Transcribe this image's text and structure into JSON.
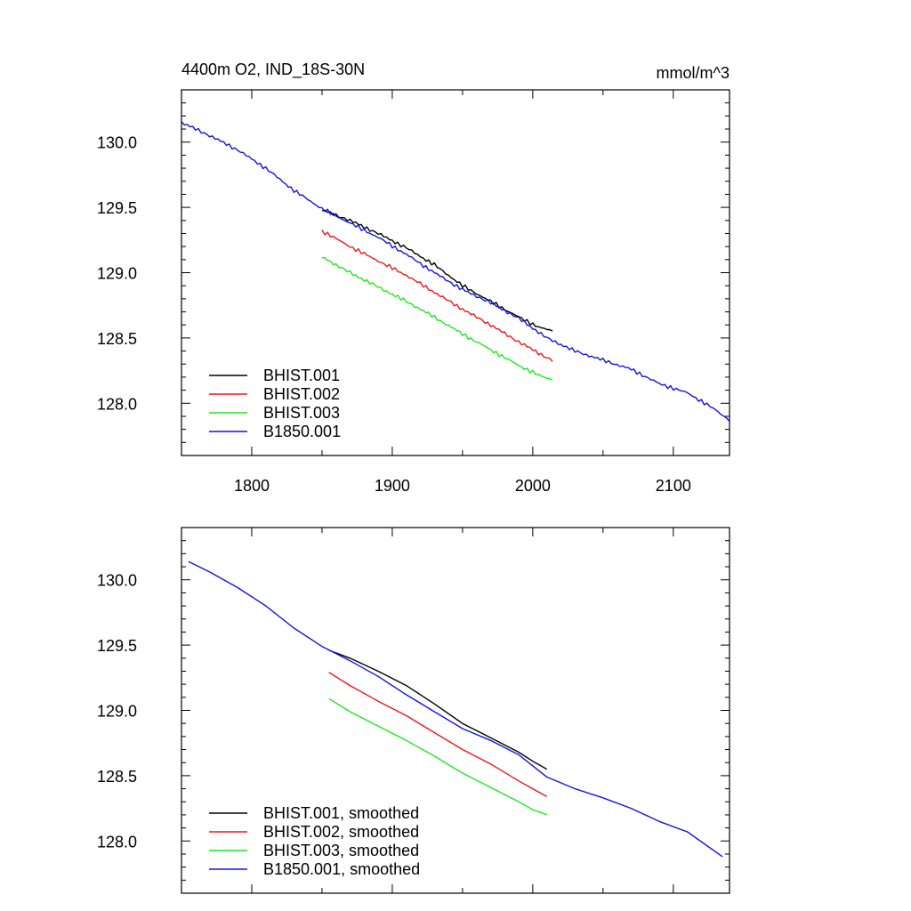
{
  "colors": {
    "BHIST.001": "#000000",
    "BHIST.002": "#e8171b",
    "BHIST.003": "#1fe81f",
    "B1850.001": "#1414d9"
  },
  "chart_data": [
    {
      "type": "line",
      "title": "4400m O2, IND_18S-30N",
      "units": "mmol/m^3",
      "xlabel": "",
      "ylabel": "",
      "xlim": [
        1750,
        2140
      ],
      "ylim": [
        127.6,
        130.4
      ],
      "xticks": [
        1800,
        1900,
        2000,
        2100
      ],
      "xticklabels": [
        "1800",
        "1900",
        "2000",
        "2100"
      ],
      "yticks": [
        128.0,
        128.5,
        129.0,
        129.5,
        130.0
      ],
      "yticklabels": [
        "128.0",
        "128.5",
        "129.0",
        "129.5",
        "130.0"
      ],
      "grid": false,
      "legend": "bottom-left",
      "noisy": true,
      "series": [
        {
          "name": "BHIST.001",
          "x": [
            1850,
            1870,
            1890,
            1910,
            1930,
            1950,
            1970,
            1990,
            2005,
            2015
          ],
          "y": [
            129.48,
            129.4,
            129.3,
            129.19,
            129.06,
            128.9,
            128.78,
            128.66,
            128.58,
            128.55
          ]
        },
        {
          "name": "BHIST.002",
          "x": [
            1850,
            1870,
            1890,
            1910,
            1930,
            1950,
            1970,
            1990,
            2005,
            2015
          ],
          "y": [
            129.32,
            129.2,
            129.09,
            128.98,
            128.85,
            128.72,
            128.6,
            128.47,
            128.38,
            128.32
          ]
        },
        {
          "name": "BHIST.003",
          "x": [
            1850,
            1870,
            1890,
            1910,
            1930,
            1950,
            1970,
            1990,
            2005,
            2015
          ],
          "y": [
            129.12,
            129.0,
            128.89,
            128.78,
            128.66,
            128.53,
            128.41,
            128.29,
            128.21,
            128.18
          ]
        },
        {
          "name": "B1850.001",
          "x": [
            1750,
            1770,
            1790,
            1810,
            1830,
            1850,
            1870,
            1890,
            1910,
            1930,
            1950,
            1970,
            1990,
            2010,
            2030,
            2050,
            2070,
            2090,
            2110,
            2130,
            2140
          ],
          "y": [
            130.15,
            130.05,
            129.94,
            129.8,
            129.63,
            129.49,
            129.38,
            129.27,
            129.14,
            129.0,
            128.87,
            128.77,
            128.65,
            128.5,
            128.4,
            128.33,
            128.26,
            128.15,
            128.08,
            127.95,
            127.87
          ]
        }
      ],
      "legend_entries": [
        "BHIST.001",
        "BHIST.002",
        "BHIST.003",
        "B1850.001"
      ]
    },
    {
      "type": "line",
      "title": "",
      "units": "",
      "xlabel": "",
      "ylabel": "",
      "xlim": [
        1750,
        2140
      ],
      "ylim": [
        127.6,
        130.4
      ],
      "xticks": [
        1800,
        1900,
        2000,
        2100
      ],
      "xticklabels": [],
      "yticks": [
        128.0,
        128.5,
        129.0,
        129.5,
        130.0
      ],
      "yticklabels": [
        "128.0",
        "128.5",
        "129.0",
        "129.5",
        "130.0"
      ],
      "grid": false,
      "legend": "bottom-left",
      "noisy": false,
      "series": [
        {
          "name": "BHIST.001",
          "x": [
            1855,
            1870,
            1890,
            1910,
            1930,
            1950,
            1970,
            1990,
            2000,
            2010
          ],
          "y": [
            129.46,
            129.4,
            129.3,
            129.19,
            129.05,
            128.9,
            128.79,
            128.68,
            128.61,
            128.55
          ]
        },
        {
          "name": "BHIST.002",
          "x": [
            1855,
            1870,
            1890,
            1910,
            1930,
            1950,
            1970,
            1990,
            2000,
            2010
          ],
          "y": [
            129.29,
            129.19,
            129.07,
            128.96,
            128.83,
            128.7,
            128.59,
            128.46,
            128.4,
            128.34
          ]
        },
        {
          "name": "BHIST.003",
          "x": [
            1855,
            1870,
            1890,
            1910,
            1930,
            1950,
            1970,
            1990,
            2000,
            2010
          ],
          "y": [
            129.09,
            128.99,
            128.88,
            128.77,
            128.65,
            128.52,
            128.41,
            128.3,
            128.24,
            128.2
          ]
        },
        {
          "name": "B1850.001",
          "x": [
            1755,
            1770,
            1790,
            1810,
            1830,
            1850,
            1870,
            1890,
            1910,
            1930,
            1950,
            1970,
            1990,
            2010,
            2030,
            2050,
            2070,
            2090,
            2110,
            2135
          ],
          "y": [
            130.14,
            130.06,
            129.94,
            129.8,
            129.63,
            129.49,
            129.38,
            129.26,
            129.12,
            128.99,
            128.86,
            128.77,
            128.66,
            128.49,
            128.4,
            128.33,
            128.25,
            128.15,
            128.07,
            127.88
          ]
        }
      ],
      "legend_entries": [
        "BHIST.001, smoothed",
        "BHIST.002, smoothed",
        "BHIST.003, smoothed",
        "B1850.001, smoothed"
      ]
    }
  ]
}
